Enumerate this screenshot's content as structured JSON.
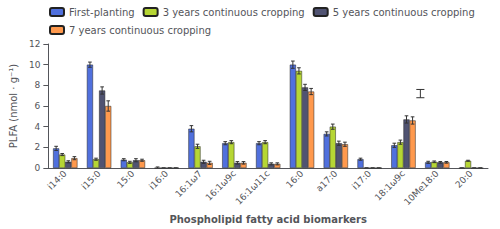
{
  "chart_data": {
    "type": "bar",
    "xlabel": "Phospholipid fatty acid biomarkers",
    "ylabel": "PLFA (nmol · g⁻¹)",
    "categories": [
      "i14:0",
      "i15:0",
      "15:0",
      "i16:0",
      "16:1ω7",
      "16:1ω9c",
      "16:1ω11c",
      "16:0",
      "a17:0",
      "i17:0",
      "18:1ω9c",
      "10Me18:0",
      "20:0"
    ],
    "series": [
      {
        "name": "First-planting",
        "values": [
          1.9,
          10.0,
          0.8,
          0.0,
          3.8,
          2.4,
          2.4,
          10.0,
          3.3,
          0.85,
          2.2,
          0.55,
          0.0
        ],
        "errors": [
          0.2,
          0.25,
          0.1,
          0.1,
          0.3,
          0.15,
          0.15,
          0.35,
          0.2,
          0.1,
          0.2,
          0.1,
          0.0
        ]
      },
      {
        "name": "3 years continuous cropping",
        "values": [
          1.3,
          0.85,
          0.55,
          0.0,
          2.1,
          2.5,
          2.5,
          9.4,
          4.0,
          0.0,
          2.5,
          0.6,
          0.7
        ],
        "errors": [
          0.1,
          0.1,
          0.1,
          0.0,
          0.2,
          0.15,
          0.15,
          0.3,
          0.25,
          0.0,
          0.2,
          0.08,
          0.05
        ]
      },
      {
        "name": "5 years continuous cropping",
        "values": [
          0.6,
          7.5,
          0.75,
          0.0,
          0.6,
          0.5,
          0.4,
          7.8,
          2.4,
          0.0,
          4.7,
          0.55,
          0.0
        ],
        "errors": [
          0.1,
          0.35,
          0.15,
          0.0,
          0.15,
          0.12,
          0.1,
          0.3,
          0.2,
          0.0,
          0.35,
          0.08,
          0.0
        ]
      },
      {
        "name": "7 years continuous cropping",
        "values": [
          0.95,
          6.0,
          0.75,
          0.0,
          0.5,
          0.5,
          0.4,
          7.4,
          2.3,
          0.0,
          4.6,
          0.55,
          0.0
        ],
        "errors": [
          0.15,
          0.5,
          0.1,
          0.0,
          0.15,
          0.12,
          0.1,
          0.3,
          0.2,
          0.0,
          0.35,
          0.08,
          0.0
        ]
      }
    ],
    "standalone_error": {
      "x": 10.5,
      "y": 7.2,
      "error": 0.4
    },
    "ylim": [
      0,
      12
    ],
    "yticks": [
      0,
      2,
      4,
      6,
      8,
      10,
      12
    ],
    "grid": false,
    "legend": "upper left"
  }
}
